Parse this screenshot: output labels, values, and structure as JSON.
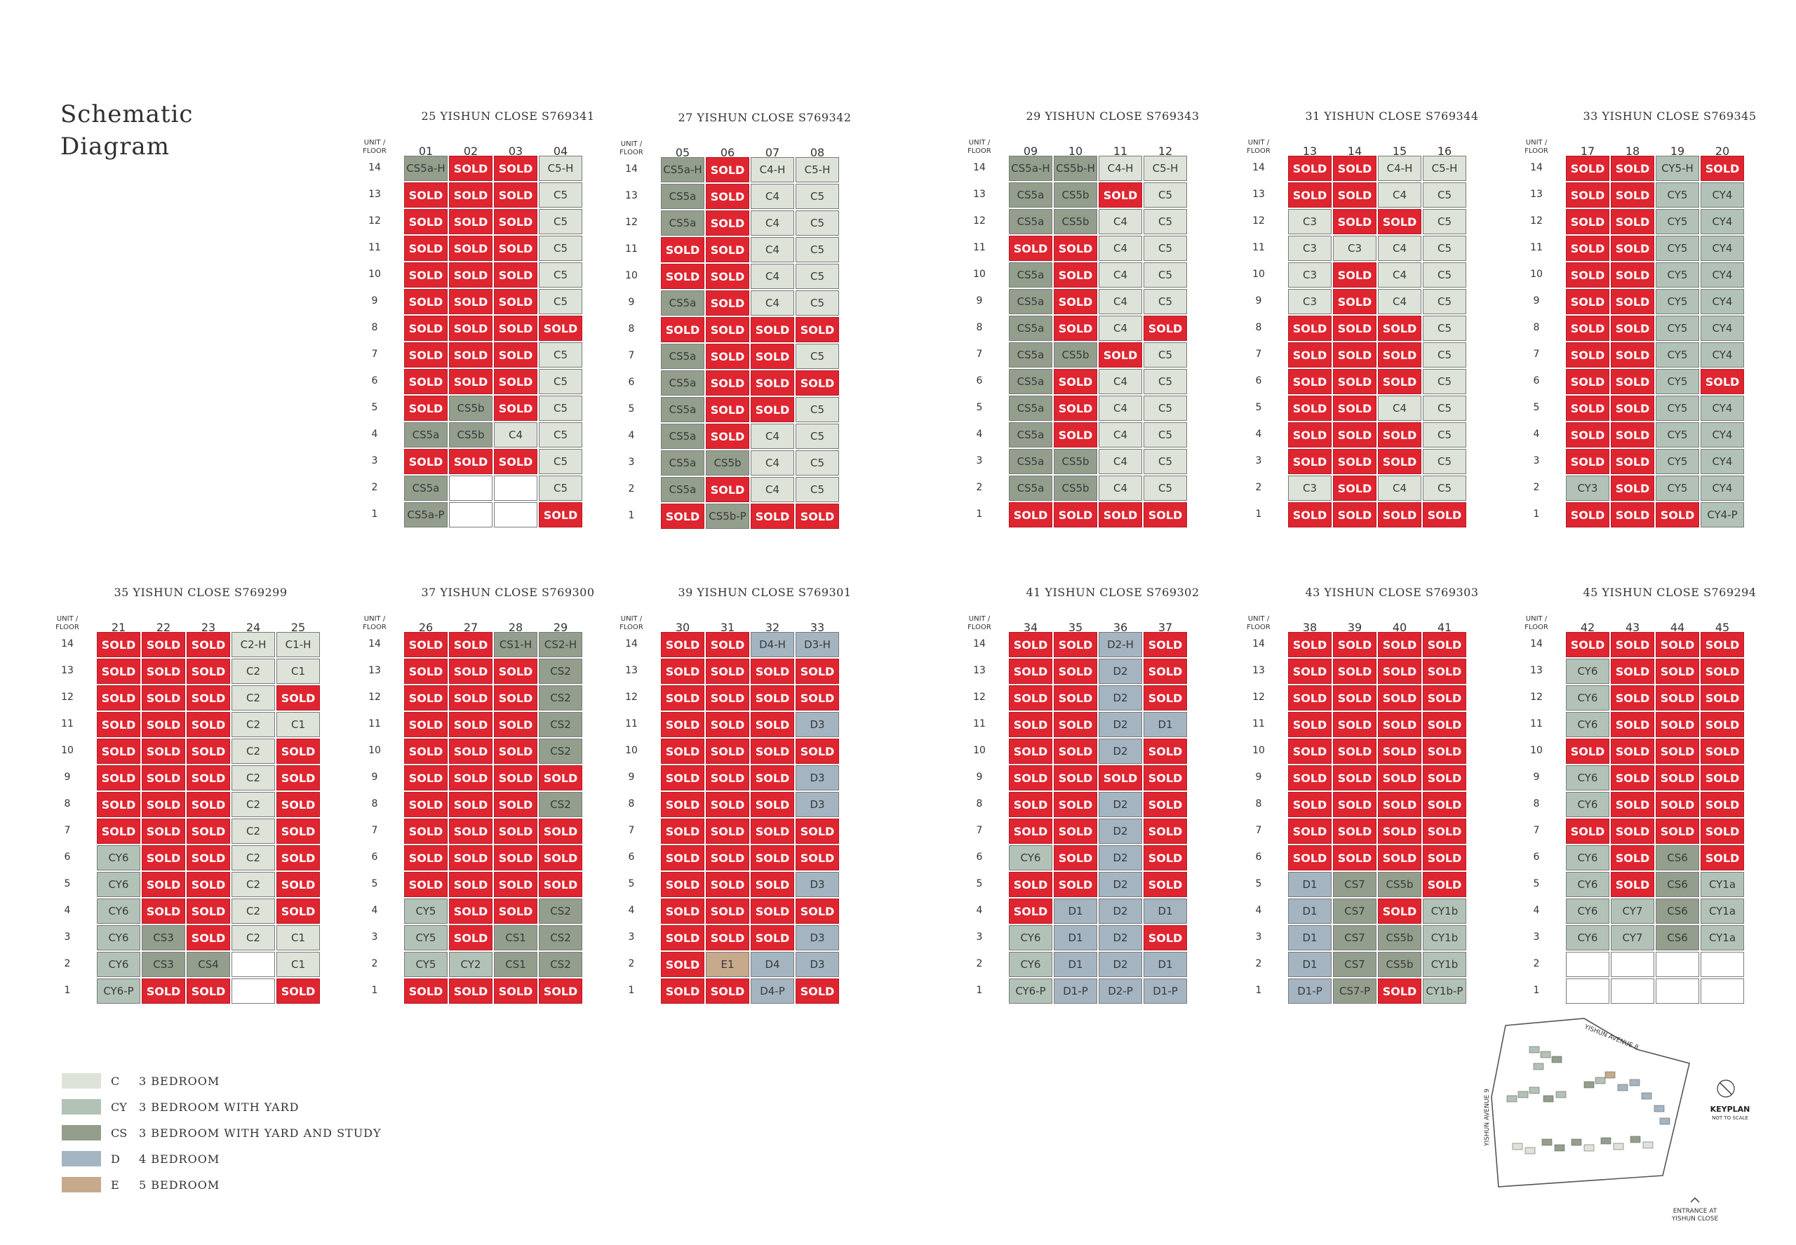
{
  "title": {
    "line1": "Schematic",
    "line2": "Diagram"
  },
  "unit_label": "UNIT /",
  "floor_label": "FLOOR",
  "floors": [
    14,
    13,
    12,
    11,
    10,
    9,
    8,
    7,
    6,
    5,
    4,
    3,
    2,
    1
  ],
  "blocks": [
    {
      "title": "25 YISHUN CLOSE S769341",
      "units": [
        "01",
        "02",
        "03",
        "04"
      ],
      "grid": [
        [
          "CS5a-H",
          "SOLD",
          "SOLD",
          "C5-H"
        ],
        [
          "SOLD",
          "SOLD",
          "SOLD",
          "C5"
        ],
        [
          "SOLD",
          "SOLD",
          "SOLD",
          "C5"
        ],
        [
          "SOLD",
          "SOLD",
          "SOLD",
          "C5"
        ],
        [
          "SOLD",
          "SOLD",
          "SOLD",
          "C5"
        ],
        [
          "SOLD",
          "SOLD",
          "SOLD",
          "C5"
        ],
        [
          "SOLD",
          "SOLD",
          "SOLD",
          "SOLD"
        ],
        [
          "SOLD",
          "SOLD",
          "SOLD",
          "C5"
        ],
        [
          "SOLD",
          "SOLD",
          "SOLD",
          "C5"
        ],
        [
          "SOLD",
          "CS5b",
          "SOLD",
          "C5"
        ],
        [
          "CS5a",
          "CS5b",
          "C4",
          "C5"
        ],
        [
          "SOLD",
          "SOLD",
          "SOLD",
          "C5"
        ],
        [
          "CS5a",
          "",
          "",
          "C5"
        ],
        [
          "CS5a-P",
          "",
          "",
          "SOLD"
        ]
      ]
    },
    {
      "title": "27 YISHUN CLOSE S769342",
      "units": [
        "05",
        "06",
        "07",
        "08"
      ],
      "grid": [
        [
          "CS5a-H",
          "SOLD",
          "C4-H",
          "C5-H"
        ],
        [
          "CS5a",
          "SOLD",
          "C4",
          "C5"
        ],
        [
          "CS5a",
          "SOLD",
          "C4",
          "C5"
        ],
        [
          "SOLD",
          "SOLD",
          "C4",
          "C5"
        ],
        [
          "SOLD",
          "SOLD",
          "C4",
          "C5"
        ],
        [
          "CS5a",
          "SOLD",
          "C4",
          "C5"
        ],
        [
          "SOLD",
          "SOLD",
          "SOLD",
          "SOLD"
        ],
        [
          "CS5a",
          "SOLD",
          "SOLD",
          "C5"
        ],
        [
          "CS5a",
          "SOLD",
          "SOLD",
          "SOLD"
        ],
        [
          "CS5a",
          "SOLD",
          "SOLD",
          "C5"
        ],
        [
          "CS5a",
          "SOLD",
          "C4",
          "C5"
        ],
        [
          "CS5a",
          "CS5b",
          "C4",
          "C5"
        ],
        [
          "CS5a",
          "SOLD",
          "C4",
          "C5"
        ],
        [
          "SOLD",
          "CS5b-P",
          "SOLD",
          "SOLD"
        ]
      ]
    },
    {
      "title": "29 YISHUN CLOSE S769343",
      "units": [
        "09",
        "10",
        "11",
        "12"
      ],
      "grid": [
        [
          "CS5a-H",
          "CS5b-H",
          "C4-H",
          "C5-H"
        ],
        [
          "CS5a",
          "CS5b",
          "SOLD",
          "C5"
        ],
        [
          "CS5a",
          "CS5b",
          "C4",
          "C5"
        ],
        [
          "SOLD",
          "SOLD",
          "C4",
          "C5"
        ],
        [
          "CS5a",
          "SOLD",
          "C4",
          "C5"
        ],
        [
          "CS5a",
          "SOLD",
          "C4",
          "C5"
        ],
        [
          "CS5a",
          "SOLD",
          "C4",
          "SOLD"
        ],
        [
          "CS5a",
          "CS5b",
          "SOLD",
          "C5"
        ],
        [
          "CS5a",
          "SOLD",
          "C4",
          "C5"
        ],
        [
          "CS5a",
          "SOLD",
          "C4",
          "C5"
        ],
        [
          "CS5a",
          "SOLD",
          "C4",
          "C5"
        ],
        [
          "CS5a",
          "CS5b",
          "C4",
          "C5"
        ],
        [
          "CS5a",
          "CS5b",
          "C4",
          "C5"
        ],
        [
          "SOLD",
          "SOLD",
          "SOLD",
          "SOLD"
        ]
      ]
    },
    {
      "title": "31 YISHUN CLOSE S769344",
      "units": [
        "13",
        "14",
        "15",
        "16"
      ],
      "grid": [
        [
          "SOLD",
          "SOLD",
          "C4-H",
          "C5-H"
        ],
        [
          "SOLD",
          "SOLD",
          "C4",
          "C5"
        ],
        [
          "C3",
          "SOLD",
          "SOLD",
          "C5"
        ],
        [
          "C3",
          "C3",
          "C4",
          "C5"
        ],
        [
          "C3",
          "SOLD",
          "C4",
          "C5"
        ],
        [
          "C3",
          "SOLD",
          "C4",
          "C5"
        ],
        [
          "SOLD",
          "SOLD",
          "SOLD",
          "C5"
        ],
        [
          "SOLD",
          "SOLD",
          "SOLD",
          "C5"
        ],
        [
          "SOLD",
          "SOLD",
          "SOLD",
          "C5"
        ],
        [
          "SOLD",
          "SOLD",
          "C4",
          "C5"
        ],
        [
          "SOLD",
          "SOLD",
          "SOLD",
          "C5"
        ],
        [
          "SOLD",
          "SOLD",
          "SOLD",
          "C5"
        ],
        [
          "C3",
          "SOLD",
          "C4",
          "C5"
        ],
        [
          "SOLD",
          "SOLD",
          "SOLD",
          "SOLD"
        ]
      ]
    },
    {
      "title": "33 YISHUN CLOSE S769345",
      "units": [
        "17",
        "18",
        "19",
        "20"
      ],
      "grid": [
        [
          "SOLD",
          "SOLD",
          "CY5-H",
          "SOLD"
        ],
        [
          "SOLD",
          "SOLD",
          "CY5",
          "CY4"
        ],
        [
          "SOLD",
          "SOLD",
          "CY5",
          "CY4"
        ],
        [
          "SOLD",
          "SOLD",
          "CY5",
          "CY4"
        ],
        [
          "SOLD",
          "SOLD",
          "CY5",
          "CY4"
        ],
        [
          "SOLD",
          "SOLD",
          "CY5",
          "CY4"
        ],
        [
          "SOLD",
          "SOLD",
          "CY5",
          "CY4"
        ],
        [
          "SOLD",
          "SOLD",
          "CY5",
          "CY4"
        ],
        [
          "SOLD",
          "SOLD",
          "CY5",
          "SOLD"
        ],
        [
          "SOLD",
          "SOLD",
          "CY5",
          "CY4"
        ],
        [
          "SOLD",
          "SOLD",
          "CY5",
          "CY4"
        ],
        [
          "SOLD",
          "SOLD",
          "CY5",
          "CY4"
        ],
        [
          "CY3",
          "SOLD",
          "CY5",
          "CY4"
        ],
        [
          "SOLD",
          "SOLD",
          "SOLD",
          "CY4-P"
        ]
      ]
    },
    {
      "title": "35 YISHUN CLOSE S769299",
      "units": [
        "21",
        "22",
        "23",
        "24",
        "25"
      ],
      "grid": [
        [
          "SOLD",
          "SOLD",
          "SOLD",
          "C2-H",
          "C1-H"
        ],
        [
          "SOLD",
          "SOLD",
          "SOLD",
          "C2",
          "C1"
        ],
        [
          "SOLD",
          "SOLD",
          "SOLD",
          "C2",
          "SOLD"
        ],
        [
          "SOLD",
          "SOLD",
          "SOLD",
          "C2",
          "C1"
        ],
        [
          "SOLD",
          "SOLD",
          "SOLD",
          "C2",
          "SOLD"
        ],
        [
          "SOLD",
          "SOLD",
          "SOLD",
          "C2",
          "SOLD"
        ],
        [
          "SOLD",
          "SOLD",
          "SOLD",
          "C2",
          "SOLD"
        ],
        [
          "SOLD",
          "SOLD",
          "SOLD",
          "C2",
          "SOLD"
        ],
        [
          "CY6",
          "SOLD",
          "SOLD",
          "C2",
          "SOLD"
        ],
        [
          "CY6",
          "SOLD",
          "SOLD",
          "C2",
          "SOLD"
        ],
        [
          "CY6",
          "SOLD",
          "SOLD",
          "C2",
          "SOLD"
        ],
        [
          "CY6",
          "CS3",
          "SOLD",
          "C2",
          "C1"
        ],
        [
          "CY6",
          "CS3",
          "CS4",
          "",
          "C1"
        ],
        [
          "CY6-P",
          "SOLD",
          "SOLD",
          "",
          "SOLD"
        ]
      ]
    },
    {
      "title": "37 YISHUN CLOSE S769300",
      "units": [
        "26",
        "27",
        "28",
        "29"
      ],
      "grid": [
        [
          "SOLD",
          "SOLD",
          "CS1-H",
          "CS2-H"
        ],
        [
          "SOLD",
          "SOLD",
          "SOLD",
          "CS2"
        ],
        [
          "SOLD",
          "SOLD",
          "SOLD",
          "CS2"
        ],
        [
          "SOLD",
          "SOLD",
          "SOLD",
          "CS2"
        ],
        [
          "SOLD",
          "SOLD",
          "SOLD",
          "CS2"
        ],
        [
          "SOLD",
          "SOLD",
          "SOLD",
          "SOLD"
        ],
        [
          "SOLD",
          "SOLD",
          "SOLD",
          "CS2"
        ],
        [
          "SOLD",
          "SOLD",
          "SOLD",
          "SOLD"
        ],
        [
          "SOLD",
          "SOLD",
          "SOLD",
          "SOLD"
        ],
        [
          "SOLD",
          "SOLD",
          "SOLD",
          "SOLD"
        ],
        [
          "CY5",
          "SOLD",
          "SOLD",
          "CS2"
        ],
        [
          "CY5",
          "SOLD",
          "CS1",
          "CS2"
        ],
        [
          "CY5",
          "CY2",
          "CS1",
          "CS2"
        ],
        [
          "SOLD",
          "SOLD",
          "SOLD",
          "SOLD"
        ]
      ]
    },
    {
      "title": "39 YISHUN CLOSE S769301",
      "units": [
        "30",
        "31",
        "32",
        "33"
      ],
      "grid": [
        [
          "SOLD",
          "SOLD",
          "D4-H",
          "D3-H"
        ],
        [
          "SOLD",
          "SOLD",
          "SOLD",
          "SOLD"
        ],
        [
          "SOLD",
          "SOLD",
          "SOLD",
          "SOLD"
        ],
        [
          "SOLD",
          "SOLD",
          "SOLD",
          "D3"
        ],
        [
          "SOLD",
          "SOLD",
          "SOLD",
          "SOLD"
        ],
        [
          "SOLD",
          "SOLD",
          "SOLD",
          "D3"
        ],
        [
          "SOLD",
          "SOLD",
          "SOLD",
          "D3"
        ],
        [
          "SOLD",
          "SOLD",
          "SOLD",
          "SOLD"
        ],
        [
          "SOLD",
          "SOLD",
          "SOLD",
          "SOLD"
        ],
        [
          "SOLD",
          "SOLD",
          "SOLD",
          "D3"
        ],
        [
          "SOLD",
          "SOLD",
          "SOLD",
          "SOLD"
        ],
        [
          "SOLD",
          "SOLD",
          "SOLD",
          "D3"
        ],
        [
          "SOLD",
          "E1",
          "D4",
          "D3"
        ],
        [
          "SOLD",
          "SOLD",
          "D4-P",
          "SOLD"
        ]
      ]
    },
    {
      "title": "41 YISHUN CLOSE S769302",
      "units": [
        "34",
        "35",
        "36",
        "37"
      ],
      "grid": [
        [
          "SOLD",
          "SOLD",
          "D2-H",
          "SOLD"
        ],
        [
          "SOLD",
          "SOLD",
          "D2",
          "SOLD"
        ],
        [
          "SOLD",
          "SOLD",
          "D2",
          "SOLD"
        ],
        [
          "SOLD",
          "SOLD",
          "D2",
          "D1"
        ],
        [
          "SOLD",
          "SOLD",
          "D2",
          "SOLD"
        ],
        [
          "SOLD",
          "SOLD",
          "SOLD",
          "SOLD"
        ],
        [
          "SOLD",
          "SOLD",
          "D2",
          "SOLD"
        ],
        [
          "SOLD",
          "SOLD",
          "D2",
          "SOLD"
        ],
        [
          "CY6",
          "SOLD",
          "D2",
          "SOLD"
        ],
        [
          "SOLD",
          "SOLD",
          "D2",
          "SOLD"
        ],
        [
          "SOLD",
          "D1",
          "D2",
          "D1"
        ],
        [
          "CY6",
          "D1",
          "D2",
          "SOLD"
        ],
        [
          "CY6",
          "D1",
          "D2",
          "D1"
        ],
        [
          "CY6-P",
          "D1-P",
          "D2-P",
          "D1-P"
        ]
      ]
    },
    {
      "title": "43 YISHUN CLOSE S769303",
      "units": [
        "38",
        "39",
        "40",
        "41"
      ],
      "grid": [
        [
          "SOLD",
          "SOLD",
          "SOLD",
          "SOLD"
        ],
        [
          "SOLD",
          "SOLD",
          "SOLD",
          "SOLD"
        ],
        [
          "SOLD",
          "SOLD",
          "SOLD",
          "SOLD"
        ],
        [
          "SOLD",
          "SOLD",
          "SOLD",
          "SOLD"
        ],
        [
          "SOLD",
          "SOLD",
          "SOLD",
          "SOLD"
        ],
        [
          "SOLD",
          "SOLD",
          "SOLD",
          "SOLD"
        ],
        [
          "SOLD",
          "SOLD",
          "SOLD",
          "SOLD"
        ],
        [
          "SOLD",
          "SOLD",
          "SOLD",
          "SOLD"
        ],
        [
          "SOLD",
          "SOLD",
          "SOLD",
          "SOLD"
        ],
        [
          "D1",
          "CS7",
          "CS5b",
          "SOLD"
        ],
        [
          "D1",
          "CS7",
          "SOLD",
          "CY1b"
        ],
        [
          "D1",
          "CS7",
          "CS5b",
          "CY1b"
        ],
        [
          "D1",
          "CS7",
          "CS5b",
          "CY1b"
        ],
        [
          "D1-P",
          "CS7-P",
          "SOLD",
          "CY1b-P"
        ]
      ]
    },
    {
      "title": "45 YISHUN  CLOSE S769294",
      "units": [
        "42",
        "43",
        "44",
        "45"
      ],
      "grid": [
        [
          "SOLD",
          "SOLD",
          "SOLD",
          "SOLD"
        ],
        [
          "CY6",
          "SOLD",
          "SOLD",
          "SOLD"
        ],
        [
          "CY6",
          "SOLD",
          "SOLD",
          "SOLD"
        ],
        [
          "CY6",
          "SOLD",
          "SOLD",
          "SOLD"
        ],
        [
          "SOLD",
          "SOLD",
          "SOLD",
          "SOLD"
        ],
        [
          "CY6",
          "SOLD",
          "SOLD",
          "SOLD"
        ],
        [
          "CY6",
          "SOLD",
          "SOLD",
          "SOLD"
        ],
        [
          "SOLD",
          "SOLD",
          "SOLD",
          "SOLD"
        ],
        [
          "CY6",
          "SOLD",
          "CS6",
          "SOLD"
        ],
        [
          "CY6",
          "SOLD",
          "CS6",
          "CY1a"
        ],
        [
          "CY6",
          "CY7",
          "CS6",
          "CY1a"
        ],
        [
          "CY6",
          "CY7",
          "CS6",
          "CY1a"
        ],
        [
          "",
          "",
          "",
          ""
        ],
        [
          "",
          "",
          "",
          ""
        ]
      ]
    }
  ],
  "legend": [
    {
      "code": "C",
      "label": "3 BEDROOM",
      "color": "#dde3d9"
    },
    {
      "code": "CY",
      "label": "3 BEDROOM WITH YARD",
      "color": "#b2c2b7"
    },
    {
      "code": "CS",
      "label": "3 BEDROOM WITH YARD AND STUDY",
      "color": "#939e8c"
    },
    {
      "code": "D",
      "label": "4 BEDROOM",
      "color": "#a4b4c1"
    },
    {
      "code": "E",
      "label": "5 BEDROOM",
      "color": "#c7a98b"
    }
  ],
  "keyplan": {
    "title": "KEYPLAN",
    "subtitle": "NOT TO SCALE",
    "road_top": "YISHUN AVENUE 8",
    "road_left": "YISHUN AVENUE 9",
    "entrance": [
      "ENTRANCE AT",
      "YISHUN CLOSE"
    ]
  },
  "colors": {
    "sold": "#df2530"
  }
}
